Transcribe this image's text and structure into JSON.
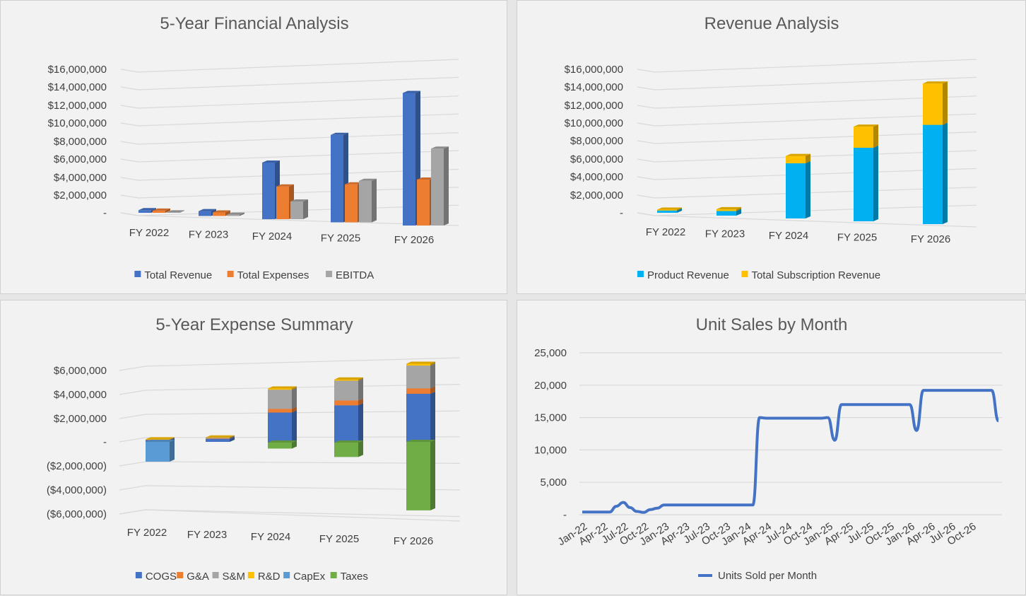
{
  "chart_data": [
    {
      "type": "bar",
      "subtype": "clustered-3d",
      "title": "5-Year Financial Analysis",
      "categories": [
        "FY 2022",
        "FY 2023",
        "FY 2024",
        "FY 2025",
        "FY 2026"
      ],
      "y_ticks": [
        "$16,000,000",
        "$14,000,000",
        "$12,000,000",
        "$10,000,000",
        "$8,000,000",
        "$6,000,000",
        "$4,000,000",
        "$2,000,000",
        "-"
      ],
      "ylim": [
        0,
        16000000
      ],
      "series": [
        {
          "name": "Total Revenue",
          "color": "#4472c4",
          "values": [
            300000,
            550000,
            6400000,
            9900000,
            15000000
          ]
        },
        {
          "name": "Total Expenses",
          "color": "#ed7d31",
          "values": [
            250000,
            400000,
            3700000,
            4300000,
            5200000
          ]
        },
        {
          "name": "EBITDA",
          "color": "#a5a5a5",
          "values": [
            50000,
            150000,
            2000000,
            4700000,
            8700000
          ]
        }
      ],
      "legend_position": "bottom",
      "grid": true
    },
    {
      "type": "bar",
      "subtype": "stacked-3d",
      "title": "Revenue Analysis",
      "categories": [
        "FY 2022",
        "FY 2023",
        "FY 2024",
        "FY 2025",
        "FY 2026"
      ],
      "y_ticks": [
        "$16,000,000",
        "$14,000,000",
        "$12,000,000",
        "$10,000,000",
        "$8,000,000",
        "$6,000,000",
        "$4,000,000",
        "$2,000,000",
        "-"
      ],
      "ylim": [
        0,
        16000000
      ],
      "series": [
        {
          "name": "Product Revenue",
          "color": "#00b0f0",
          "values": [
            250000,
            500000,
            6000000,
            8000000,
            10800000
          ]
        },
        {
          "name": "Total Subscription Revenue",
          "color": "#ffc000",
          "values": [
            100000,
            200000,
            800000,
            2300000,
            4500000
          ]
        }
      ],
      "legend_position": "bottom",
      "grid": true
    },
    {
      "type": "bar",
      "subtype": "stacked-3d",
      "title": "5-Year Expense Summary",
      "categories": [
        "FY 2022",
        "FY 2023",
        "FY 2024",
        "FY 2025",
        "FY 2026"
      ],
      "y_ticks": [
        "$6,000,000",
        "$4,000,000",
        "$2,000,000",
        "-",
        "($2,000,000)",
        "($4,000,000)",
        "($6,000,000)"
      ],
      "ylim": [
        -6000000,
        6000000
      ],
      "series": [
        {
          "name": "COGS",
          "color": "#4472c4",
          "values": [
            150000,
            250000,
            2500000,
            3100000,
            4000000
          ]
        },
        {
          "name": "G&A",
          "color": "#ed7d31",
          "values": [
            20000,
            40000,
            300000,
            400000,
            450000
          ]
        },
        {
          "name": "S&M",
          "color": "#a5a5a5",
          "values": [
            30000,
            60000,
            1600000,
            1650000,
            1900000
          ]
        },
        {
          "name": "R&D",
          "color": "#ffc000",
          "values": [
            10000,
            20000,
            100000,
            100000,
            150000
          ]
        },
        {
          "name": "CapEx",
          "color": "#5b9bd5",
          "values": [
            -1650000,
            0,
            0,
            0,
            0
          ]
        },
        {
          "name": "Taxes",
          "color": "#70ad47",
          "values": [
            0,
            0,
            -500000,
            -1200000,
            -5700000
          ]
        }
      ],
      "legend_position": "bottom",
      "grid": true
    },
    {
      "type": "line",
      "title": "Unit Sales by Month",
      "x_ticks": [
        "Jan-22",
        "Apr-22",
        "Jul-22",
        "Oct-22",
        "Jan-23",
        "Apr-23",
        "Jul-23",
        "Oct-23",
        "Jan-24",
        "Apr-24",
        "Jul-24",
        "Oct-24",
        "Jan-25",
        "Apr-25",
        "Jul-25",
        "Oct-25",
        "Jan-26",
        "Apr-26",
        "Jul-26",
        "Oct-26"
      ],
      "y_ticks": [
        "25,000",
        "20,000",
        "15,000",
        "10,000",
        "5,000",
        "-"
      ],
      "ylim": [
        0,
        25000
      ],
      "series": [
        {
          "name": "Units Sold per Month",
          "color": "#4472c4",
          "values": [
            400,
            400,
            400,
            400,
            400,
            1300,
            1900,
            1100,
            500,
            350,
            800,
            1000,
            1500,
            1500,
            1500,
            1500,
            1500,
            1500,
            1500,
            1500,
            1500,
            1500,
            1500,
            1500,
            1500,
            1500,
            15000,
            14900,
            14900,
            14900,
            14900,
            14900,
            14900,
            14900,
            14900,
            14900,
            15000,
            11500,
            17000,
            17000,
            17000,
            17000,
            17000,
            17000,
            17000,
            17000,
            17000,
            17000,
            17000,
            13000,
            19200,
            19200,
            19200,
            19200,
            19200,
            19200,
            19200,
            19200,
            19200,
            19200,
            19200,
            14500
          ]
        }
      ],
      "legend_position": "bottom",
      "grid": true
    }
  ]
}
